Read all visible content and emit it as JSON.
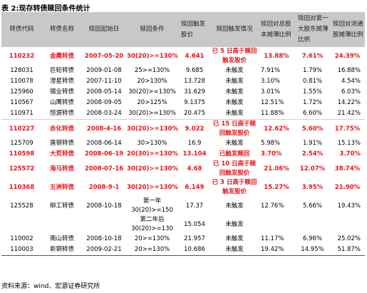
{
  "caption": "表 2:现存转债赎回条件统计",
  "headers": [
    "转债代码",
    "转债名称",
    "赎回起始日",
    "赎回条件",
    "赎回触发股价",
    "赎回触发情况",
    "赎回对总股本摊薄比例",
    "赎回对第一大股东摊薄比例",
    "赎回对流通股摊薄比例"
  ],
  "rows": [
    {
      "code": "110232",
      "name": "金鹰转债",
      "start": "2007-05-20",
      "cond": "30(20)>=130%",
      "price": "4.641",
      "status": "已 5 日高于赎回触发股价",
      "total": "13.88%",
      "first": "7.61%",
      "float": "24.39%"
    },
    {
      "code": "128031",
      "name": "巨轮转债",
      "start": "2009-01-08",
      "cond": "25>=130%",
      "price": "9.685",
      "status": "未触发",
      "total": "7.91%",
      "first": "1.79%",
      "float": "16.88%"
    },
    {
      "code": "110078",
      "name": "澄星转债",
      "start": "2007-11-10",
      "cond": "20>130%",
      "price": "13.728",
      "status": "未触发",
      "total": "3.10%",
      "first": "0.81%",
      "float": "4.54%"
    },
    {
      "code": "125960",
      "name": "锡业转债",
      "start": "2008-05-14",
      "cond": "30(20)>=130%",
      "price": "31.629",
      "status": "未触发",
      "total": "3.01%",
      "first": "1.55%",
      "float": "6.03%"
    },
    {
      "code": "110567",
      "name": "山鹰转债",
      "start": "2008-09-05",
      "cond": "20>125%",
      "price": "9.1375",
      "status": "未触发",
      "total": "12.51%",
      "first": "1.72%",
      "float": "14.22%"
    },
    {
      "code": "110971",
      "name": "恒源转债",
      "start": "2008-03-24",
      "cond": "30(20)>=130%",
      "price": "20.475",
      "status": "未触发",
      "total": "11.88%",
      "first": "6.60%",
      "float": "21.42%"
    },
    {
      "code": "110227",
      "name": "赤化转债",
      "start": "2008-4-16",
      "cond": "30(20)>=130%",
      "price": "9.022",
      "status": "已 15 日高于赎回触发股价",
      "total": "12.62%",
      "first": "5.60%",
      "float": "17.75%"
    },
    {
      "code": "125709",
      "name": "唐钢转债",
      "start": "2008-06-14",
      "cond": "30>130%",
      "price": "16.9",
      "status": "未触发",
      "total": "5.98%",
      "first": "1.91%",
      "float": "15.13%"
    },
    {
      "code": "110598",
      "name": "大荒转债",
      "start": "2008-06-19",
      "cond": "20(30)>=130%",
      "price": "13.104",
      "status": "已触发赎回",
      "total": "3.70%",
      "first": "2.54%",
      "float": "3.70%"
    },
    {
      "code": "125572",
      "name": "海马转债",
      "start": "2008-07-16",
      "cond": "30(20)>=130%",
      "price": "4.68",
      "status": "已 10 日高于赎回触发股价",
      "total": "21.06%",
      "first": "12.07%",
      "float": "38.74%"
    },
    {
      "code": "110368",
      "name": "五洲转债",
      "start": "2008-9-1",
      "cond": "30(20)>=130%",
      "price": "6.149",
      "status": "已 3 日高于赎回触发股价",
      "total": "15.27%",
      "first": "3.95%",
      "float": "21.90%"
    },
    {
      "code": "125528",
      "name": "柳工转债",
      "start": "2008-10-18",
      "cond": "第一年 30(20)>=150",
      "price": "17.37",
      "status": "未触发",
      "total": "12.76%",
      "first": "5.66%",
      "float": "19.43%"
    },
    {
      "code": "",
      "name": "",
      "start": "",
      "cond": "第二年后 30(20)>=130",
      "price": "15.054",
      "status": "未触发",
      "total": "",
      "first": "",
      "float": ""
    },
    {
      "code": "110002",
      "name": "南山转债",
      "start": "2008-10-18",
      "cond": "20>=130%",
      "price": "21.957",
      "status": "未触发",
      "total": "11.17%",
      "first": "6.96%",
      "float": "25.02%"
    },
    {
      "code": "110003",
      "name": "新钢转债",
      "start": "2009-02-21",
      "cond": "20>=130%",
      "price": "10.686",
      "status": "未触发",
      "total": "19.42%",
      "first": "14.95%",
      "float": "51.87%"
    }
  ],
  "source": "资料来源：wind、宏源证券研究所",
  "colors": {
    "highlight": "#e8161d",
    "header_bg": "#c8c8c8"
  }
}
